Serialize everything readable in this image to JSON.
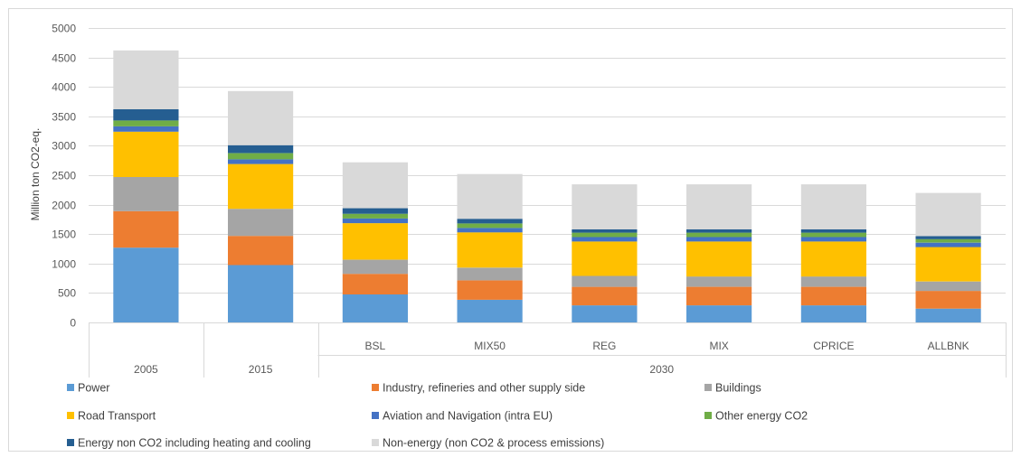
{
  "chart_data": {
    "type": "bar",
    "stacked": true,
    "ylabel": "Million ton CO2-eq.",
    "ylim": [
      0,
      5000
    ],
    "yticks": [
      0,
      500,
      1000,
      1500,
      2000,
      2500,
      3000,
      3500,
      4000,
      4500,
      5000
    ],
    "categories": [
      "2005",
      "2015",
      "BSL",
      "MIX50",
      "REG",
      "MIX",
      "CPRICE",
      "ALLBNK"
    ],
    "groups": [
      {
        "label": "2005",
        "categories": [
          "2005"
        ]
      },
      {
        "label": "2015",
        "categories": [
          "2015"
        ]
      },
      {
        "label": "2030",
        "categories": [
          "BSL",
          "MIX50",
          "REG",
          "MIX",
          "CPRICE",
          "ALLBNK"
        ]
      }
    ],
    "grid": true,
    "legend_position": "bottom",
    "series": [
      {
        "name": "Power",
        "color": "#5b9bd5",
        "values": [
          1270,
          975,
          475,
          385,
          290,
          290,
          290,
          235
        ]
      },
      {
        "name": "Industry, refineries and other supply side",
        "color": "#ed7d31",
        "values": [
          620,
          495,
          350,
          330,
          315,
          315,
          315,
          300
        ]
      },
      {
        "name": "Buildings",
        "color": "#a5a5a5",
        "values": [
          580,
          460,
          240,
          215,
          185,
          175,
          175,
          160
        ]
      },
      {
        "name": "Road Transport",
        "color": "#ffc000",
        "values": [
          770,
          760,
          620,
          600,
          585,
          595,
          595,
          585
        ]
      },
      {
        "name": "Aviation and Navigation (intra EU)",
        "color": "#4472c4",
        "values": [
          90,
          80,
          80,
          75,
          75,
          75,
          75,
          75
        ]
      },
      {
        "name": "Other energy CO2",
        "color": "#70ad47",
        "values": [
          100,
          105,
          80,
          75,
          75,
          75,
          75,
          60
        ]
      },
      {
        "name": "Energy non CO2 including heating and cooling",
        "color": "#255e91",
        "values": [
          190,
          135,
          95,
          80,
          55,
          55,
          55,
          50
        ]
      },
      {
        "name": "Non-energy (non CO2 & process emissions)",
        "color": "#d9d9d9",
        "values": [
          1000,
          920,
          780,
          760,
          765,
          765,
          765,
          735
        ]
      }
    ]
  }
}
